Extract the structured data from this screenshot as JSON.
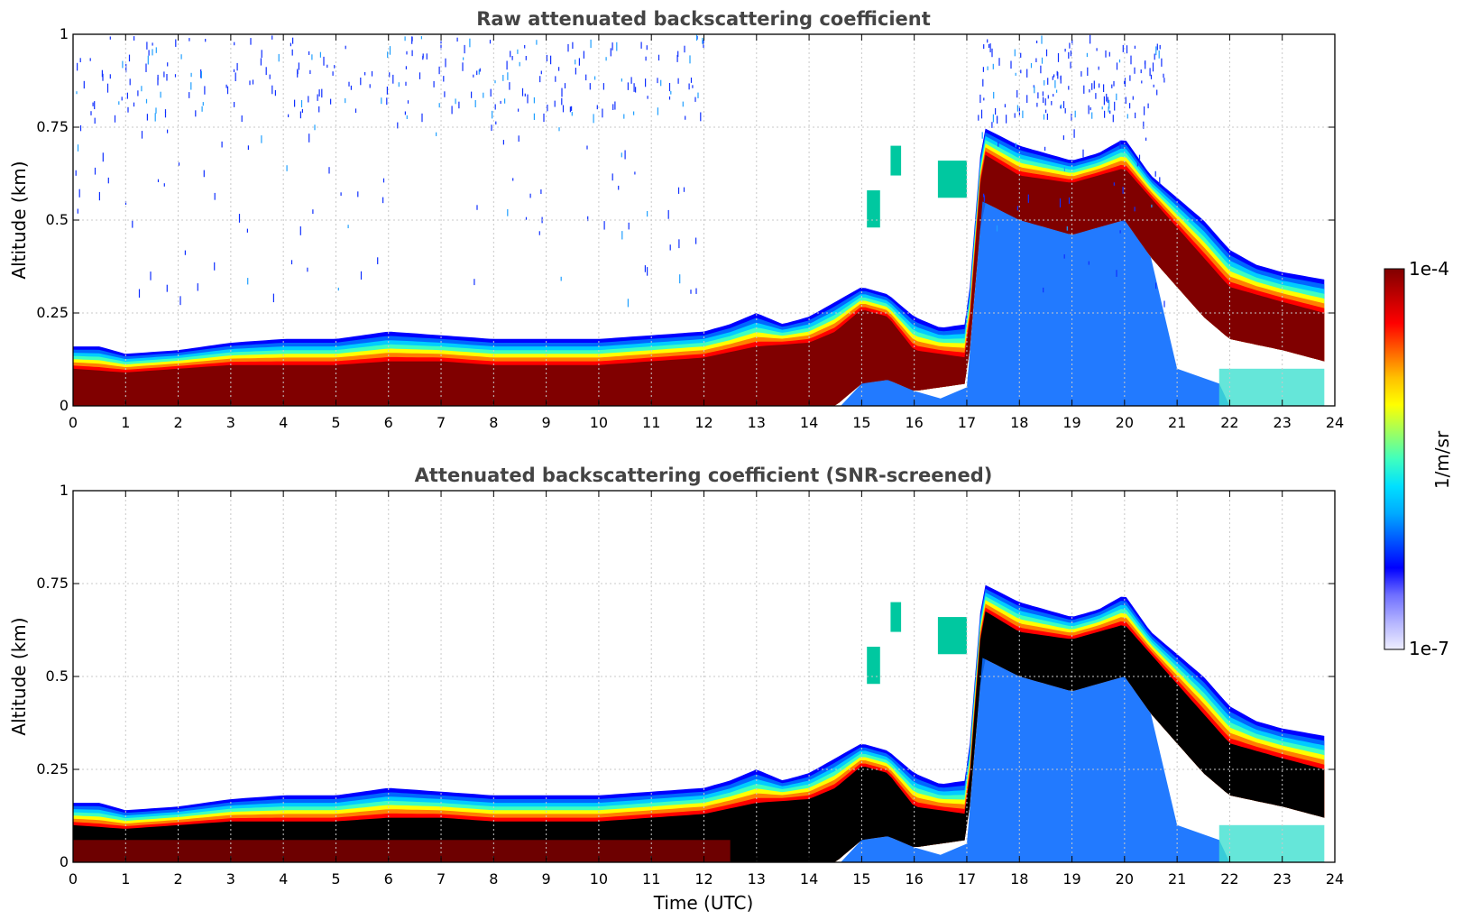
{
  "chart_data": [
    {
      "type": "heatmap",
      "title": "Raw attenuated backscattering coefficient",
      "xlabel": "",
      "ylabel": "Altitude (km)",
      "xlim": [
        0,
        24
      ],
      "ylim": [
        0,
        1
      ],
      "xticks": [
        "0",
        "1",
        "2",
        "3",
        "4",
        "5",
        "6",
        "7",
        "8",
        "9",
        "10",
        "11",
        "12",
        "13",
        "14",
        "15",
        "16",
        "17",
        "18",
        "19",
        "20",
        "21",
        "22",
        "23",
        "24"
      ],
      "yticks": [
        "0",
        "0.25",
        "0.5",
        "0.75",
        "1"
      ],
      "grid": true,
      "screened": false,
      "layer_top_km": [
        [
          0,
          0.16
        ],
        [
          0.5,
          0.16
        ],
        [
          1,
          0.14
        ],
        [
          2,
          0.15
        ],
        [
          3,
          0.17
        ],
        [
          4,
          0.18
        ],
        [
          5,
          0.18
        ],
        [
          6,
          0.2
        ],
        [
          7,
          0.19
        ],
        [
          8,
          0.18
        ],
        [
          9,
          0.18
        ],
        [
          10,
          0.18
        ],
        [
          11,
          0.19
        ],
        [
          12,
          0.2
        ],
        [
          12.5,
          0.22
        ],
        [
          13,
          0.25
        ],
        [
          13.5,
          0.22
        ],
        [
          14,
          0.24
        ],
        [
          14.5,
          0.28
        ],
        [
          15,
          0.32
        ],
        [
          15.5,
          0.3
        ],
        [
          16,
          0.24
        ],
        [
          16.5,
          0.21
        ],
        [
          17,
          0.22
        ],
        [
          17.3,
          0.75
        ],
        [
          18,
          0.7
        ],
        [
          18.5,
          0.68
        ],
        [
          19,
          0.66
        ],
        [
          19.5,
          0.68
        ],
        [
          20,
          0.72
        ],
        [
          20.5,
          0.62
        ],
        [
          21,
          0.56
        ],
        [
          21.5,
          0.5
        ],
        [
          22,
          0.42
        ],
        [
          22.5,
          0.38
        ],
        [
          23,
          0.36
        ],
        [
          23.8,
          0.34
        ]
      ],
      "dense_top_km": [
        [
          0,
          0.1
        ],
        [
          1,
          0.09
        ],
        [
          2,
          0.1
        ],
        [
          3,
          0.11
        ],
        [
          4,
          0.11
        ],
        [
          5,
          0.11
        ],
        [
          6,
          0.12
        ],
        [
          7,
          0.12
        ],
        [
          8,
          0.11
        ],
        [
          9,
          0.11
        ],
        [
          10,
          0.11
        ],
        [
          11,
          0.12
        ],
        [
          12,
          0.13
        ],
        [
          13,
          0.16
        ],
        [
          14,
          0.17
        ],
        [
          14.5,
          0.2
        ],
        [
          15,
          0.26
        ],
        [
          15.5,
          0.24
        ],
        [
          16,
          0.15
        ],
        [
          17,
          0.13
        ],
        [
          17.3,
          0.68
        ],
        [
          18,
          0.62
        ],
        [
          19,
          0.6
        ],
        [
          20,
          0.64
        ],
        [
          20.5,
          0.56
        ],
        [
          21,
          0.48
        ],
        [
          21.5,
          0.4
        ],
        [
          22,
          0.32
        ],
        [
          23,
          0.28
        ],
        [
          23.8,
          0.25
        ]
      ],
      "dense_bottom_km": [
        [
          0,
          0
        ],
        [
          14.5,
          0
        ],
        [
          15,
          0.06
        ],
        [
          15.5,
          0.07
        ],
        [
          16,
          0.04
        ],
        [
          17,
          0.06
        ],
        [
          17.3,
          0.55
        ],
        [
          18,
          0.5
        ],
        [
          19,
          0.46
        ],
        [
          20,
          0.5
        ],
        [
          20.5,
          0.4
        ],
        [
          21,
          0.32
        ],
        [
          21.5,
          0.24
        ],
        [
          22,
          0.18
        ],
        [
          23,
          0.15
        ],
        [
          23.8,
          0.12
        ]
      ],
      "patches_km": [
        {
          "x": [
            15.1,
            15.35
          ],
          "y": [
            0.48,
            0.58
          ]
        },
        {
          "x": [
            15.55,
            15.75
          ],
          "y": [
            0.62,
            0.7
          ]
        },
        {
          "x": [
            16.45,
            17.0
          ],
          "y": [
            0.56,
            0.66
          ]
        }
      ]
    },
    {
      "type": "heatmap",
      "title": "Attenuated backscattering coefficient (SNR-screened)",
      "xlabel": "Time (UTC)",
      "ylabel": "Altitude (km)",
      "xlim": [
        0,
        24
      ],
      "ylim": [
        0,
        1
      ],
      "xticks": [
        "0",
        "1",
        "2",
        "3",
        "4",
        "5",
        "6",
        "7",
        "8",
        "9",
        "10",
        "11",
        "12",
        "13",
        "14",
        "15",
        "16",
        "17",
        "18",
        "19",
        "20",
        "21",
        "22",
        "23",
        "24"
      ],
      "yticks": [
        "0",
        "0.25",
        "0.5",
        "0.75",
        "1"
      ],
      "grid": true,
      "screened": true
    }
  ],
  "colorbar": {
    "label": "1/m/sr",
    "max_label": "1e-4",
    "min_label": "1e-7",
    "scale": "log",
    "colors": [
      "#eeeeff",
      "#b4b4ff",
      "#6f6fff",
      "#0000ff",
      "#0055ff",
      "#00aaff",
      "#00e0ff",
      "#3fffbf",
      "#9fff5f",
      "#ffff00",
      "#ffc000",
      "#ff6000",
      "#ff0000",
      "#c00000",
      "#800000"
    ]
  },
  "colors": {
    "saturated": "#800000",
    "screened_fill": "#000000",
    "grid": "#c8c8c8",
    "title": "#444444"
  }
}
